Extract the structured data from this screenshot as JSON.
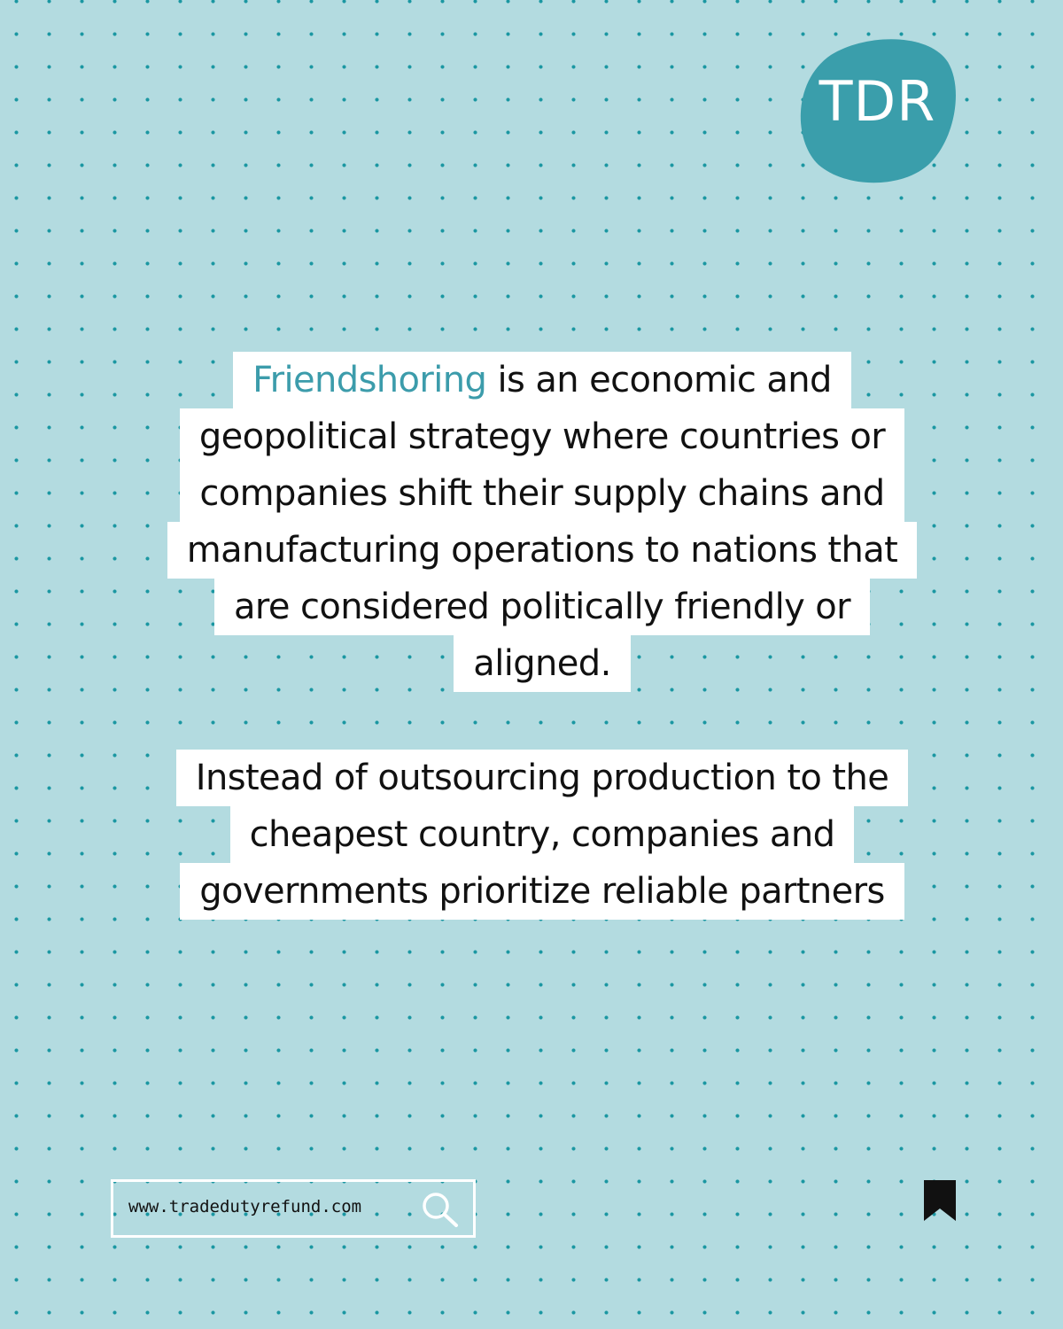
{
  "logo": {
    "text": "TDR",
    "color": "#3a9eab"
  },
  "content": {
    "paragraph1": {
      "highlight": "Friendshoring",
      "line1_rest": " is an economic and",
      "line2": "geopolitical strategy where countries or",
      "line3": "companies shift their supply chains and",
      "line4": "manufacturing operations to nations that",
      "line5": "are considered politically friendly or",
      "line6": "aligned."
    },
    "paragraph2": {
      "line1": "Instead of outsourcing production to the",
      "line2": "cheapest country, companies and",
      "line3": "governments prioritize reliable partners"
    }
  },
  "footer": {
    "url": "www.tradedutyrefund.com",
    "search_icon": "search-icon",
    "bookmark_icon": "bookmark-icon"
  },
  "colors": {
    "background": "#b3dbe0",
    "dots": "#1b97a2",
    "highlight": "#3c9cab"
  }
}
